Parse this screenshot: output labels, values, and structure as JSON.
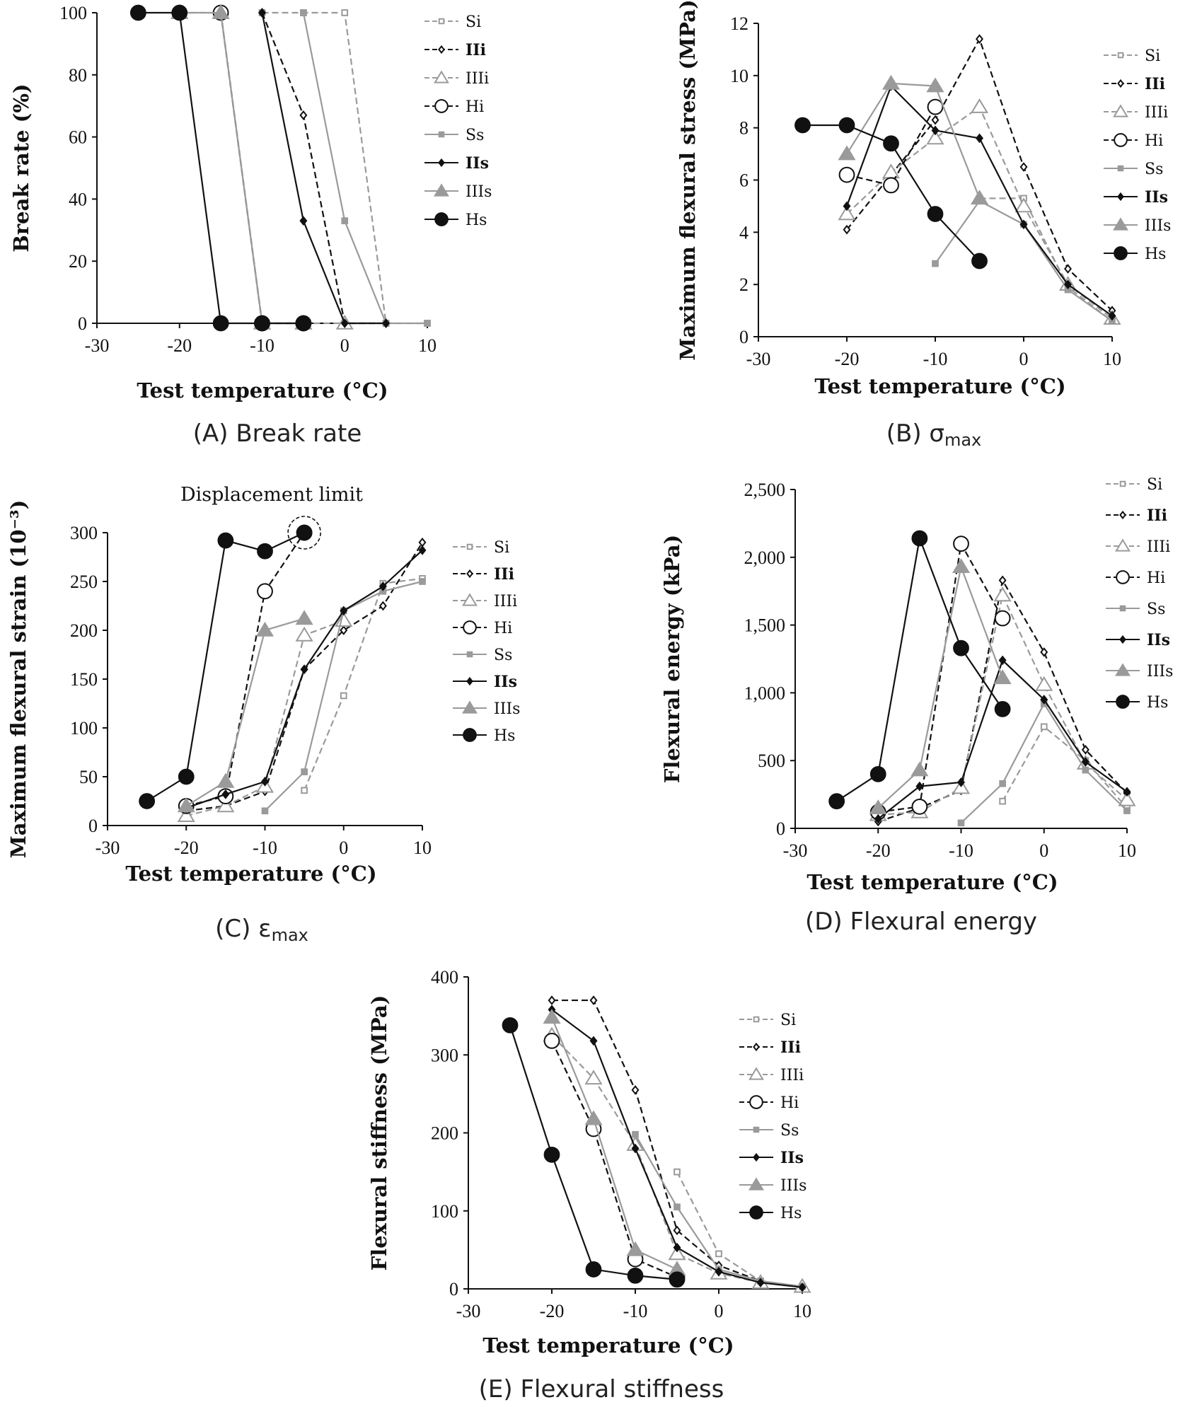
{
  "legend": [
    {
      "key": "Si",
      "label": "Si",
      "bold": false
    },
    {
      "key": "IIi",
      "label": "IIi",
      "bold": true
    },
    {
      "key": "IIIi",
      "label": "IIIi",
      "bold": false
    },
    {
      "key": "Hi",
      "label": "Hi",
      "bold": false
    },
    {
      "key": "Ss",
      "label": "Ss",
      "bold": false
    },
    {
      "key": "IIs",
      "label": "IIs",
      "bold": true
    },
    {
      "key": "IIIs",
      "label": "IIIs",
      "bold": false
    },
    {
      "key": "Hs",
      "label": "Hs",
      "bold": false
    }
  ],
  "styles": {
    "Si": {
      "color": "#9a9a9a",
      "marker": "square-open",
      "dash": "9,5"
    },
    "IIi": {
      "color": "#111111",
      "marker": "diamond-open",
      "dash": "9,5"
    },
    "IIIi": {
      "color": "#9a9a9a",
      "marker": "triangle-open",
      "dash": "9,5"
    },
    "Hi": {
      "color": "#111111",
      "marker": "circle-open",
      "dash": "9,5"
    },
    "Ss": {
      "color": "#9a9a9a",
      "marker": "square-filled",
      "dash": ""
    },
    "IIs": {
      "color": "#111111",
      "marker": "diamond-filled",
      "dash": ""
    },
    "IIIs": {
      "color": "#9a9a9a",
      "marker": "triangle-filled",
      "dash": ""
    },
    "Hs": {
      "color": "#111111",
      "marker": "circle-filled",
      "dash": ""
    }
  },
  "chart_data": [
    {
      "id": "A",
      "type": "line",
      "title": "Break rate",
      "caption": "(A) Break rate",
      "xlabel": "Test temperature (°C)",
      "ylabel": "Break rate (%)",
      "xlim": [
        -30,
        10
      ],
      "ylim": [
        0,
        100
      ],
      "xticks": [
        -30,
        -20,
        -10,
        0,
        10
      ],
      "yticks": [
        0,
        20,
        40,
        60,
        80,
        100
      ],
      "ytick_labels": [
        "0",
        "20",
        "40",
        "60",
        "80",
        "100"
      ],
      "series": [
        {
          "name": "Si",
          "x": [
            -10,
            -5,
            0,
            5,
            10
          ],
          "y": [
            100,
            100,
            100,
            0,
            0
          ]
        },
        {
          "name": "IIi",
          "x": [
            -10,
            -5,
            0,
            5
          ],
          "y": [
            100,
            67,
            0,
            0
          ]
        },
        {
          "name": "IIIi",
          "x": [
            -20,
            -15,
            -10,
            -5,
            0
          ],
          "y": [
            100,
            100,
            0,
            0,
            0
          ]
        },
        {
          "name": "Hi",
          "x": [
            -15,
            -10,
            -5
          ],
          "y": [
            100,
            0,
            0
          ]
        },
        {
          "name": "Ss",
          "x": [
            -5,
            0,
            5,
            10
          ],
          "y": [
            100,
            33,
            0,
            0
          ]
        },
        {
          "name": "IIs",
          "x": [
            -10,
            -5,
            0,
            5
          ],
          "y": [
            100,
            33,
            0,
            0
          ]
        },
        {
          "name": "IIIs",
          "x": [
            -20,
            -15,
            -10,
            -5
          ],
          "y": [
            100,
            100,
            0,
            0
          ]
        },
        {
          "name": "Hs",
          "x": [
            -25,
            -20,
            -15,
            -10,
            -5
          ],
          "y": [
            100,
            100,
            0,
            0,
            0
          ]
        }
      ]
    },
    {
      "id": "B",
      "type": "line",
      "title": "σmax",
      "caption": "(B) σ",
      "caption_sub": "max",
      "xlabel": "Test temperature (°C)",
      "ylabel": "Maximum flexural stress (MPa)",
      "xlim": [
        -30,
        10
      ],
      "ylim": [
        0,
        12
      ],
      "xticks": [
        -30,
        -20,
        -10,
        0,
        10
      ],
      "yticks": [
        0,
        2,
        4,
        6,
        8,
        10,
        12
      ],
      "ytick_labels": [
        "0",
        "2",
        "4",
        "6",
        "8",
        "10",
        "12"
      ],
      "series": [
        {
          "name": "Si",
          "x": [
            -5,
            0,
            5,
            10
          ],
          "y": [
            5.3,
            5.3,
            1.9,
            0.6
          ]
        },
        {
          "name": "IIi",
          "x": [
            -20,
            -15,
            -10,
            -5,
            0,
            5,
            10
          ],
          "y": [
            4.1,
            6.2,
            8.3,
            11.4,
            6.5,
            2.6,
            1.0
          ]
        },
        {
          "name": "IIIi",
          "x": [
            -20,
            -15,
            -10,
            -5,
            0,
            5,
            10
          ],
          "y": [
            4.7,
            6.3,
            7.6,
            8.8,
            5.0,
            2.0,
            0.7
          ]
        },
        {
          "name": "Hi",
          "x": [
            -20,
            -15,
            -10
          ],
          "y": [
            6.2,
            5.8,
            8.8
          ]
        },
        {
          "name": "Ss",
          "x": [
            -10,
            -5,
            0,
            5,
            10
          ],
          "y": [
            2.8,
            5.2,
            4.3,
            1.8,
            0.6
          ]
        },
        {
          "name": "IIs",
          "x": [
            -20,
            -15,
            -10,
            -5,
            0,
            5,
            10
          ],
          "y": [
            5.0,
            9.6,
            7.9,
            7.6,
            4.3,
            2.0,
            0.8
          ]
        },
        {
          "name": "IIIs",
          "x": [
            -20,
            -15,
            -10,
            -5
          ],
          "y": [
            7.0,
            9.7,
            9.6,
            5.3
          ]
        },
        {
          "name": "Hs",
          "x": [
            -25,
            -20,
            -15,
            -10,
            -5
          ],
          "y": [
            8.1,
            8.1,
            7.4,
            4.7,
            2.9
          ]
        }
      ]
    },
    {
      "id": "C",
      "type": "line",
      "title": "εmax",
      "caption": "(C) ε",
      "caption_sub": "max",
      "annotation": "Displacement limit",
      "xlabel": "Test temperature (°C)",
      "ylabel": "Maximum flexural strain (10⁻³)",
      "xlim": [
        -30,
        10
      ],
      "ylim": [
        0,
        300
      ],
      "xticks": [
        -30,
        -20,
        -10,
        0,
        10
      ],
      "yticks": [
        0,
        50,
        100,
        150,
        200,
        250,
        300
      ],
      "ytick_labels": [
        "0",
        "50",
        "100",
        "150",
        "200",
        "250",
        "300"
      ],
      "series": [
        {
          "name": "Si",
          "x": [
            -5,
            0,
            5,
            10
          ],
          "y": [
            36,
            133,
            248,
            253
          ]
        },
        {
          "name": "IIi",
          "x": [
            -20,
            -15,
            -10,
            -5,
            0,
            5,
            10
          ],
          "y": [
            15,
            20,
            35,
            160,
            200,
            225,
            290
          ]
        },
        {
          "name": "IIIi",
          "x": [
            -20,
            -15,
            -10,
            -5,
            0
          ],
          "y": [
            10,
            20,
            40,
            195,
            210
          ]
        },
        {
          "name": "Hi",
          "x": [
            -20,
            -15,
            -10,
            -5
          ],
          "y": [
            20,
            30,
            240,
            300
          ]
        },
        {
          "name": "Ss",
          "x": [
            -10,
            -5,
            0,
            5,
            10
          ],
          "y": [
            15,
            55,
            220,
            240,
            250
          ]
        },
        {
          "name": "IIs",
          "x": [
            -20,
            -15,
            -10,
            -5,
            0,
            5,
            10
          ],
          "y": [
            18,
            32,
            45,
            160,
            220,
            245,
            282
          ]
        },
        {
          "name": "IIIs",
          "x": [
            -20,
            -15,
            -10,
            -5
          ],
          "y": [
            20,
            45,
            200,
            212
          ]
        },
        {
          "name": "Hs",
          "x": [
            -25,
            -20,
            -15,
            -10,
            -5
          ],
          "y": [
            25,
            50,
            292,
            281,
            300
          ]
        }
      ]
    },
    {
      "id": "D",
      "type": "line",
      "title": "Flexural energy",
      "caption": "(D) Flexural energy",
      "xlabel": "Test temperature (°C)",
      "ylabel": "Flexural energy (kPa)",
      "xlim": [
        -30,
        10
      ],
      "ylim": [
        0,
        2500
      ],
      "xticks": [
        -30,
        -20,
        -10,
        0,
        10
      ],
      "yticks": [
        0,
        500,
        1000,
        1500,
        2000,
        2500
      ],
      "ytick_labels": [
        "0",
        "500",
        "1,000",
        "1,500",
        "2,000",
        "2,500"
      ],
      "series": [
        {
          "name": "Si",
          "x": [
            -5,
            0,
            5,
            10
          ],
          "y": [
            200,
            750,
            500,
            150
          ]
        },
        {
          "name": "IIi",
          "x": [
            -20,
            -15,
            -10,
            -5,
            0,
            5,
            10
          ],
          "y": [
            50,
            150,
            280,
            1830,
            1300,
            580,
            260
          ]
        },
        {
          "name": "IIIi",
          "x": [
            -20,
            -15,
            -10,
            -5,
            0,
            5,
            10
          ],
          "y": [
            100,
            120,
            300,
            1720,
            1060,
            480,
            210
          ]
        },
        {
          "name": "Hi",
          "x": [
            -20,
            -15,
            -10,
            -5
          ],
          "y": [
            120,
            160,
            2100,
            1550
          ]
        },
        {
          "name": "Ss",
          "x": [
            -10,
            -5,
            0,
            5,
            10
          ],
          "y": [
            40,
            330,
            920,
            430,
            130
          ]
        },
        {
          "name": "IIs",
          "x": [
            -20,
            -15,
            -10,
            -5,
            0,
            5,
            10
          ],
          "y": [
            70,
            310,
            340,
            1240,
            950,
            490,
            270
          ]
        },
        {
          "name": "IIIs",
          "x": [
            -20,
            -15,
            -10,
            -5
          ],
          "y": [
            150,
            430,
            1930,
            1110
          ]
        },
        {
          "name": "Hs",
          "x": [
            -25,
            -20,
            -15,
            -10,
            -5
          ],
          "y": [
            200,
            400,
            2140,
            1330,
            880
          ]
        }
      ]
    },
    {
      "id": "E",
      "type": "line",
      "title": "Flexural stiffness",
      "caption": "(E) Flexural stiffness",
      "xlabel": "Test temperature (°C)",
      "ylabel": "Flexural stiffness (MPa)",
      "xlim": [
        -30,
        10
      ],
      "ylim": [
        0,
        400
      ],
      "xticks": [
        -30,
        -20,
        -10,
        0,
        10
      ],
      "yticks": [
        0,
        100,
        200,
        300,
        400
      ],
      "ytick_labels": [
        "0",
        "100",
        "200",
        "300",
        "400"
      ],
      "series": [
        {
          "name": "Si",
          "x": [
            -5,
            0,
            5,
            10
          ],
          "y": [
            150,
            45,
            10,
            3
          ]
        },
        {
          "name": "IIi",
          "x": [
            -20,
            -15,
            -10,
            -5,
            0,
            5,
            10
          ],
          "y": [
            370,
            370,
            255,
            75,
            30,
            10,
            3
          ]
        },
        {
          "name": "IIIi",
          "x": [
            -20,
            -15,
            -10,
            -5,
            0,
            5,
            10
          ],
          "y": [
            325,
            270,
            185,
            45,
            20,
            8,
            3
          ]
        },
        {
          "name": "Hi",
          "x": [
            -20,
            -15,
            -10,
            -5
          ],
          "y": [
            318,
            205,
            38,
            15
          ]
        },
        {
          "name": "Ss",
          "x": [
            -10,
            -5,
            0,
            5,
            10
          ],
          "y": [
            198,
            105,
            25,
            10,
            3
          ]
        },
        {
          "name": "IIs",
          "x": [
            -20,
            -15,
            -10,
            -5,
            0,
            5,
            10
          ],
          "y": [
            358,
            318,
            180,
            53,
            22,
            8,
            2
          ]
        },
        {
          "name": "IIIs",
          "x": [
            -20,
            -15,
            -10,
            -5
          ],
          "y": [
            348,
            218,
            50,
            25
          ]
        },
        {
          "name": "Hs",
          "x": [
            -25,
            -20,
            -15,
            -10,
            -5
          ],
          "y": [
            338,
            172,
            25,
            17,
            12
          ]
        }
      ]
    }
  ]
}
